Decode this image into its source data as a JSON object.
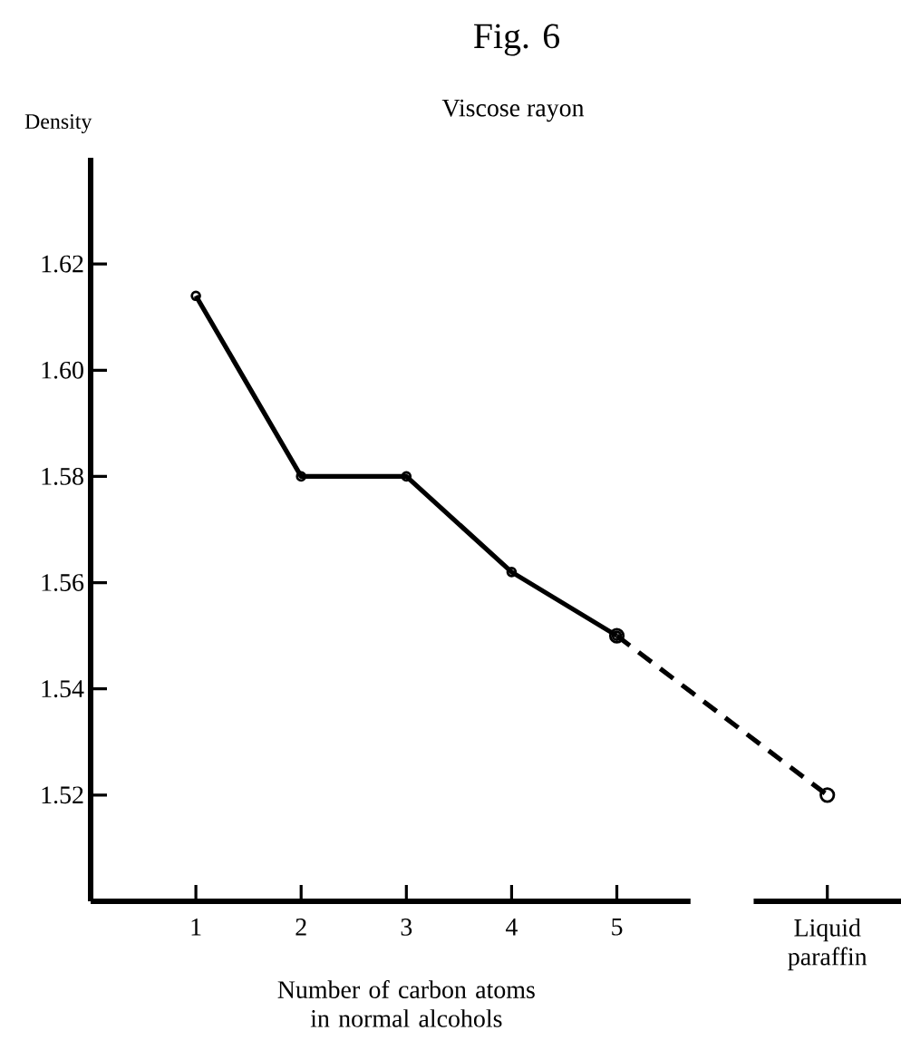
{
  "chart_data": {
    "type": "line",
    "title": "Fig. 6",
    "subtitle": "Viscose rayon",
    "xlabel": "Number of carbon atoms in normal alcohols",
    "ylabel": "Density",
    "xlim": [
      0,
      7.7
    ],
    "ylim": [
      1.5,
      1.64
    ],
    "xticks": [
      1,
      2,
      3,
      4,
      5,
      {
        "value": 7,
        "label": "Liquid paraffin"
      }
    ],
    "yticks": [
      1.52,
      1.54,
      1.56,
      1.58,
      {
        "value": 1.6,
        "label": "1.60"
      },
      1.62
    ],
    "marker": "circle",
    "grid": false,
    "series": [
      {
        "color": "#000000",
        "line_style": "solid",
        "x": [
          1,
          2,
          3,
          4,
          5
        ],
        "values": [
          1.614,
          1.58,
          1.58,
          1.562,
          1.55
        ]
      },
      {
        "color": "#000000",
        "line_style": "dashed",
        "x": [
          5,
          7
        ],
        "values": [
          1.55,
          1.52
        ]
      }
    ]
  }
}
